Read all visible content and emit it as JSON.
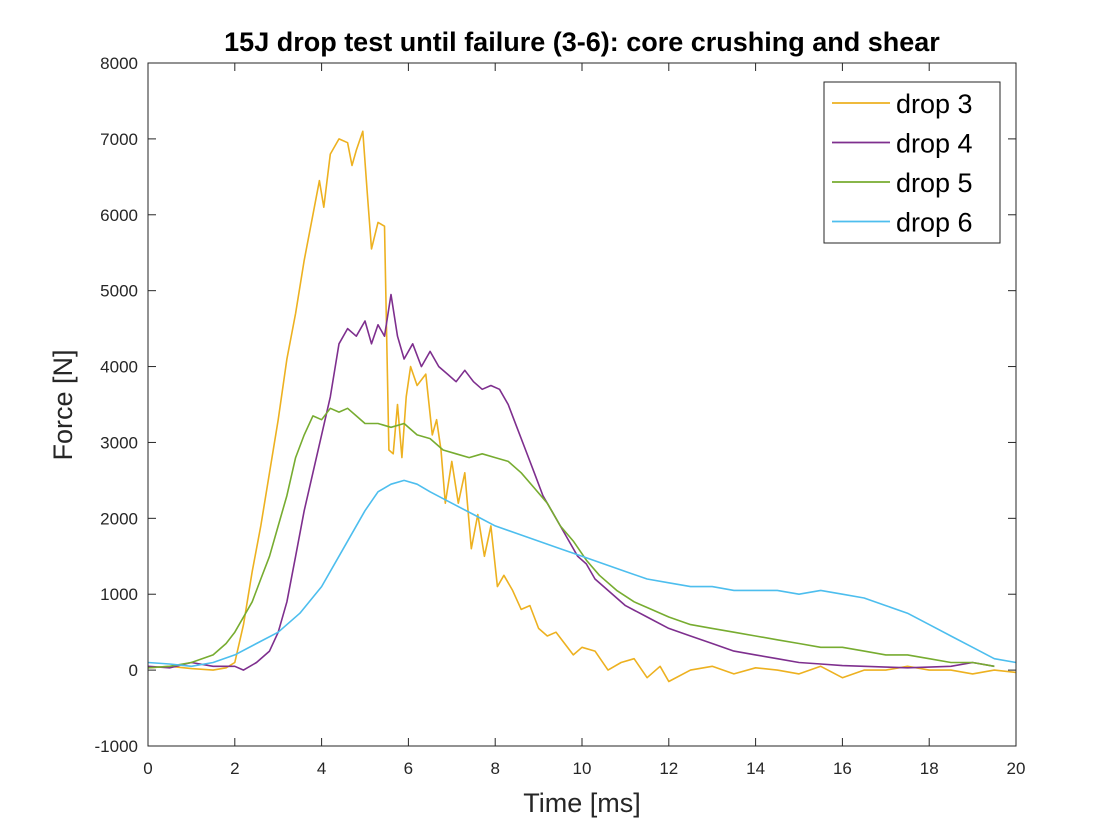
{
  "chart_data": {
    "type": "line",
    "title": "15J drop test until failure (3-6): core crushing and shear",
    "xlabel": "Time [ms]",
    "ylabel": "Force [N]",
    "xlim": [
      0,
      20
    ],
    "ylim": [
      -1000,
      8000
    ],
    "xticks": [
      0,
      2,
      4,
      6,
      8,
      10,
      12,
      14,
      16,
      18,
      20
    ],
    "yticks": [
      -1000,
      0,
      1000,
      2000,
      3000,
      4000,
      5000,
      6000,
      7000,
      8000
    ],
    "grid": false,
    "legend_position": "top-right",
    "series": [
      {
        "name": "drop 3",
        "color": "#EDB120",
        "x": [
          0,
          0.5,
          1,
          1.5,
          1.8,
          2,
          2.2,
          2.4,
          2.6,
          2.8,
          3,
          3.2,
          3.4,
          3.6,
          3.8,
          3.95,
          4.05,
          4.2,
          4.4,
          4.6,
          4.7,
          4.8,
          4.95,
          5.05,
          5.15,
          5.3,
          5.45,
          5.55,
          5.65,
          5.75,
          5.85,
          5.95,
          6.05,
          6.2,
          6.4,
          6.55,
          6.65,
          6.75,
          6.85,
          7,
          7.15,
          7.3,
          7.45,
          7.6,
          7.75,
          7.9,
          8.05,
          8.2,
          8.4,
          8.6,
          8.8,
          9,
          9.2,
          9.4,
          9.6,
          9.8,
          10,
          10.3,
          10.6,
          10.9,
          11.2,
          11.5,
          11.8,
          12,
          12.5,
          13,
          13.5,
          14,
          14.5,
          15,
          15.5,
          16,
          16.5,
          17,
          17.5,
          18,
          18.5,
          19,
          19.5,
          20
        ],
        "y": [
          30,
          50,
          20,
          0,
          30,
          100,
          600,
          1300,
          1900,
          2600,
          3300,
          4100,
          4700,
          5400,
          6000,
          6450,
          6100,
          6800,
          7000,
          6950,
          6650,
          6850,
          7100,
          6300,
          5550,
          5900,
          5850,
          2900,
          2850,
          3500,
          2800,
          3600,
          4000,
          3750,
          3900,
          3100,
          3300,
          2900,
          2200,
          2750,
          2200,
          2600,
          1600,
          2050,
          1500,
          1900,
          1100,
          1250,
          1050,
          800,
          850,
          550,
          450,
          500,
          350,
          200,
          300,
          250,
          0,
          100,
          150,
          -100,
          50,
          -150,
          0,
          50,
          -50,
          30,
          0,
          -50,
          50,
          -100,
          0,
          0,
          50,
          0,
          0,
          -50,
          0,
          -30
        ]
      },
      {
        "name": "drop 4",
        "color": "#7E2F8E",
        "x": [
          0,
          0.5,
          1,
          1.5,
          2,
          2.2,
          2.5,
          2.8,
          3,
          3.2,
          3.4,
          3.6,
          3.8,
          4,
          4.2,
          4.4,
          4.6,
          4.8,
          5,
          5.15,
          5.3,
          5.45,
          5.6,
          5.75,
          5.9,
          6.1,
          6.3,
          6.5,
          6.7,
          6.9,
          7.1,
          7.3,
          7.5,
          7.7,
          7.9,
          8.1,
          8.3,
          8.5,
          8.7,
          8.9,
          9.1,
          9.3,
          9.5,
          9.7,
          9.9,
          10.1,
          10.3,
          10.6,
          11,
          11.5,
          12,
          12.5,
          13,
          13.5,
          14,
          14.5,
          15,
          15.5,
          16,
          16.5,
          17,
          17.5,
          18,
          18.5,
          19,
          19.5
        ],
        "y": [
          50,
          30,
          100,
          50,
          50,
          0,
          100,
          250,
          500,
          900,
          1500,
          2100,
          2600,
          3100,
          3600,
          4300,
          4500,
          4400,
          4600,
          4300,
          4550,
          4400,
          4950,
          4400,
          4100,
          4300,
          4000,
          4200,
          4000,
          3900,
          3800,
          3950,
          3800,
          3700,
          3750,
          3700,
          3500,
          3200,
          2900,
          2600,
          2300,
          2100,
          1900,
          1700,
          1500,
          1400,
          1200,
          1050,
          850,
          700,
          550,
          450,
          350,
          250,
          200,
          150,
          100,
          80,
          60,
          50,
          40,
          30,
          40,
          50,
          100,
          50
        ]
      },
      {
        "name": "drop 5",
        "color": "#77AC30",
        "x": [
          0,
          0.5,
          1,
          1.5,
          1.8,
          2,
          2.2,
          2.4,
          2.6,
          2.8,
          3,
          3.2,
          3.4,
          3.6,
          3.8,
          4,
          4.2,
          4.4,
          4.6,
          4.8,
          5,
          5.3,
          5.6,
          5.9,
          6.2,
          6.5,
          6.8,
          7.1,
          7.4,
          7.7,
          8,
          8.3,
          8.6,
          8.9,
          9.2,
          9.5,
          9.8,
          10.1,
          10.4,
          10.8,
          11.2,
          11.6,
          12,
          12.5,
          13,
          13.5,
          14,
          14.5,
          15,
          15.5,
          16,
          16.5,
          17,
          17.5,
          18,
          18.5,
          19,
          19.5
        ],
        "y": [
          30,
          50,
          100,
          200,
          350,
          500,
          700,
          900,
          1200,
          1500,
          1900,
          2300,
          2800,
          3100,
          3350,
          3300,
          3450,
          3400,
          3450,
          3350,
          3250,
          3250,
          3200,
          3250,
          3100,
          3050,
          2900,
          2850,
          2800,
          2850,
          2800,
          2750,
          2600,
          2400,
          2200,
          1900,
          1700,
          1450,
          1250,
          1050,
          900,
          800,
          700,
          600,
          550,
          500,
          450,
          400,
          350,
          300,
          300,
          250,
          200,
          200,
          150,
          100,
          100,
          50
        ]
      },
      {
        "name": "drop 6",
        "color": "#4DBEEE",
        "x": [
          0,
          0.5,
          1,
          1.5,
          2,
          2.5,
          3,
          3.5,
          4,
          4.5,
          5,
          5.3,
          5.6,
          5.9,
          6.2,
          6.5,
          7,
          7.5,
          8,
          8.5,
          9,
          9.5,
          10,
          10.5,
          11,
          11.5,
          12,
          12.5,
          13,
          13.5,
          14,
          14.5,
          15,
          15.5,
          16,
          16.5,
          17,
          17.5,
          18,
          18.5,
          19,
          19.5,
          20
        ],
        "y": [
          100,
          80,
          50,
          100,
          200,
          350,
          500,
          750,
          1100,
          1600,
          2100,
          2350,
          2450,
          2500,
          2450,
          2350,
          2200,
          2050,
          1900,
          1800,
          1700,
          1600,
          1500,
          1400,
          1300,
          1200,
          1150,
          1100,
          1100,
          1050,
          1050,
          1050,
          1000,
          1050,
          1000,
          950,
          850,
          750,
          600,
          450,
          300,
          150,
          100
        ]
      }
    ]
  }
}
